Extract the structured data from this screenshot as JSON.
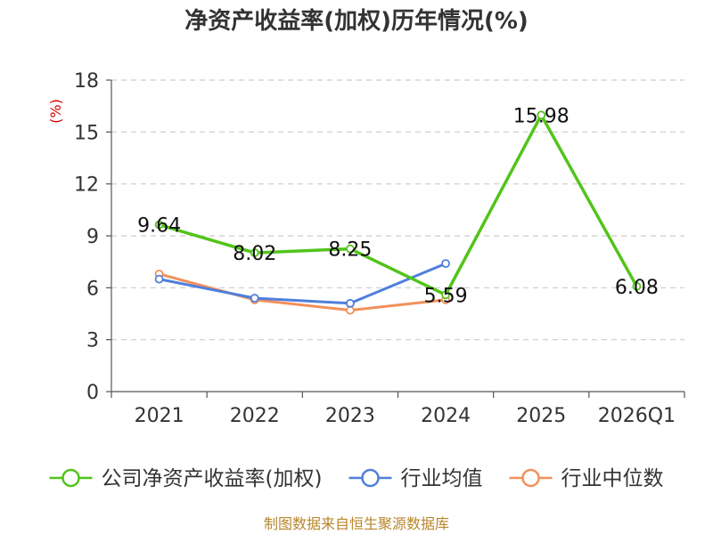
{
  "chart_data": {
    "type": "line",
    "title": "净资产收益率(加权)历年情况(%)",
    "ylabel": "(%)",
    "xlabel": "",
    "categories": [
      "2021",
      "2022",
      "2023",
      "2024",
      "2025",
      "2026Q1"
    ],
    "yticks": [
      "0",
      "3",
      "6",
      "9",
      "12",
      "15",
      "18"
    ],
    "ylim": [
      0,
      18
    ],
    "grid": true,
    "legend_position": "bottom",
    "series": [
      {
        "name": "公司净资产收益率(加权)",
        "color": "#52c41a",
        "values": [
          9.64,
          8.02,
          8.25,
          5.59,
          15.98,
          6.08
        ],
        "labels": [
          "9.64",
          "8.02",
          "8.25",
          "5.59",
          "15.98",
          "6.08"
        ]
      },
      {
        "name": "行业均值",
        "color": "#4f7fdc",
        "values": [
          6.5,
          5.4,
          5.1,
          7.4,
          null,
          null
        ]
      },
      {
        "name": "行业中位数",
        "color": "#f3905a",
        "values": [
          6.8,
          5.3,
          4.7,
          5.3,
          null,
          null
        ]
      }
    ]
  },
  "source": "制图数据来自恒生聚源数据库"
}
